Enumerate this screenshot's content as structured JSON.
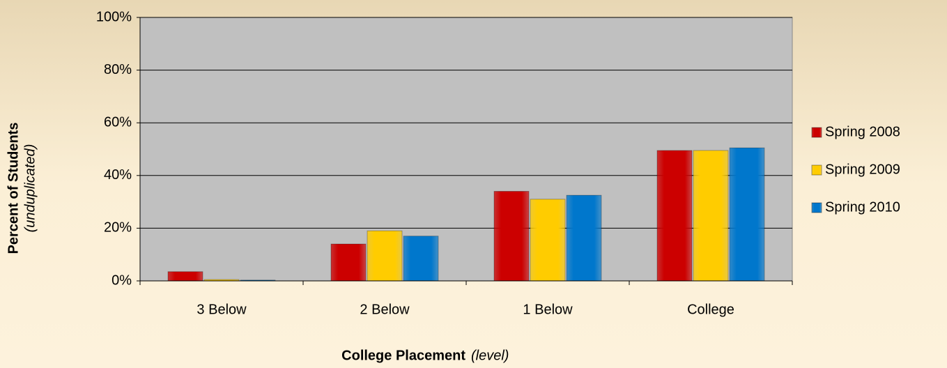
{
  "chart_data": {
    "type": "bar",
    "y_label": "Percent of Students",
    "y_label_note": "(unduplicated)",
    "x_label": "College Placement",
    "x_label_note": "(level)",
    "categories": [
      "3 Below",
      "2 Below",
      "1 Below",
      "College"
    ],
    "series": [
      {
        "name": "Spring 2008",
        "color": "#cc0000",
        "values": [
          3.5,
          14,
          34,
          49.5
        ]
      },
      {
        "name": "Spring 2009",
        "color": "#ffcc00",
        "values": [
          0.5,
          19,
          31,
          49.5
        ]
      },
      {
        "name": "Spring 2010",
        "color": "#0077cc",
        "values": [
          0.3,
          17,
          32.5,
          50.5
        ]
      }
    ],
    "ylim": [
      0,
      100
    ],
    "yticks": [
      {
        "value": 0,
        "label": "0%"
      },
      {
        "value": 20,
        "label": "20%"
      },
      {
        "value": 40,
        "label": "40%"
      },
      {
        "value": 60,
        "label": "60%"
      },
      {
        "value": 80,
        "label": "80%"
      },
      {
        "value": 100,
        "label": "100%"
      }
    ],
    "grid": true,
    "legend": "right"
  }
}
